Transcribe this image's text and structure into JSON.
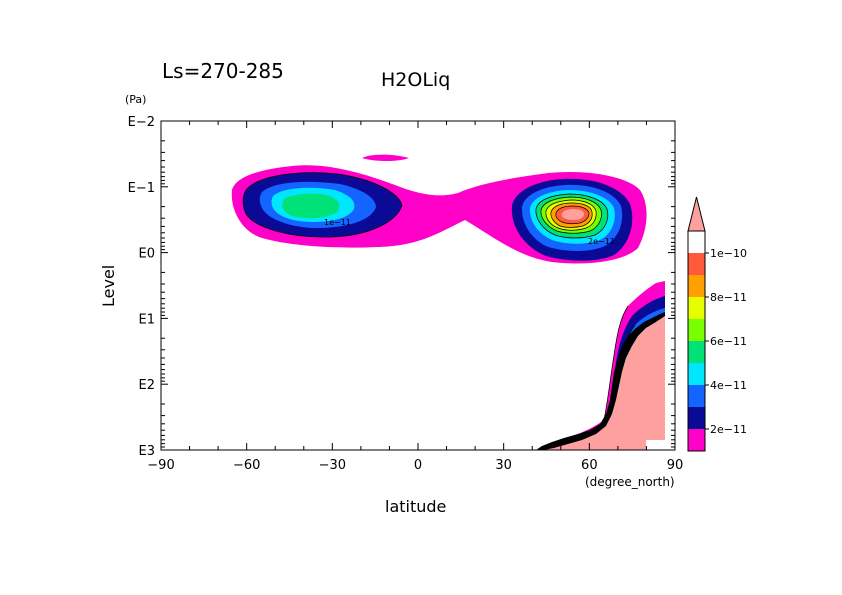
{
  "chart_data": {
    "type": "heatmap",
    "period_label": "Ls=270-285",
    "title": "H2OLiq",
    "xlabel": "latitude",
    "x_units": "(degree_north)",
    "ylabel": "Level",
    "y_units": "(Pa)",
    "y_scale": "log",
    "xlim": [
      -90,
      90
    ],
    "ylim": [
      1000,
      0.01
    ],
    "x_ticks": [
      {
        "value": -90,
        "label": "−90"
      },
      {
        "value": -60,
        "label": "−60"
      },
      {
        "value": -30,
        "label": "−30"
      },
      {
        "value": 0,
        "label": "0"
      },
      {
        "value": 30,
        "label": "30"
      },
      {
        "value": 60,
        "label": "60"
      },
      {
        "value": 90,
        "label": "90"
      }
    ],
    "y_ticks": [
      {
        "value": 0.01,
        "label": "E−2"
      },
      {
        "value": 0.1,
        "label": "E−1"
      },
      {
        "value": 1,
        "label": "E0"
      },
      {
        "value": 10,
        "label": "E1"
      },
      {
        "value": 100,
        "label": "E2"
      },
      {
        "value": 1000,
        "label": "E3"
      }
    ],
    "colorbar": {
      "levels": [
        1e-11,
        2e-11,
        3e-11,
        4e-11,
        5e-11,
        6e-11,
        7e-11,
        8e-11,
        9e-11,
        1e-10,
        1.1e-10
      ],
      "colors": [
        "#ff00c8",
        "#0a0a96",
        "#1464ff",
        "#00e6ff",
        "#00e178",
        "#78ff00",
        "#e6ff00",
        "#ffa000",
        "#ff5a3c",
        "#ffa0a0"
      ],
      "tick_labels": [
        {
          "level": 2e-11,
          "label": "2e−11"
        },
        {
          "level": 4e-11,
          "label": "4e−11"
        },
        {
          "level": 6e-11,
          "label": "6e−11"
        },
        {
          "level": 8e-11,
          "label": "8e−11"
        },
        {
          "level": 1e-10,
          "label": "1e−10"
        }
      ],
      "overflow_arrow": "top",
      "placement": "right"
    },
    "features": [
      {
        "name": "southern-cloud-band",
        "lat_center": -40,
        "level_center": 0.3,
        "peak_value": 5.5e-11
      },
      {
        "name": "northern-cloud-band",
        "lat_center": 60,
        "level_center": 0.3,
        "peak_value": 1.05e-10
      },
      {
        "name": "north-polar-lower-cloud",
        "lat_range": [
          40,
          88
        ],
        "level_range": [
          3,
          1000
        ],
        "peak_value": 1.1e-10
      }
    ],
    "contour_labels": [
      "1e−11",
      "2e−11"
    ]
  }
}
